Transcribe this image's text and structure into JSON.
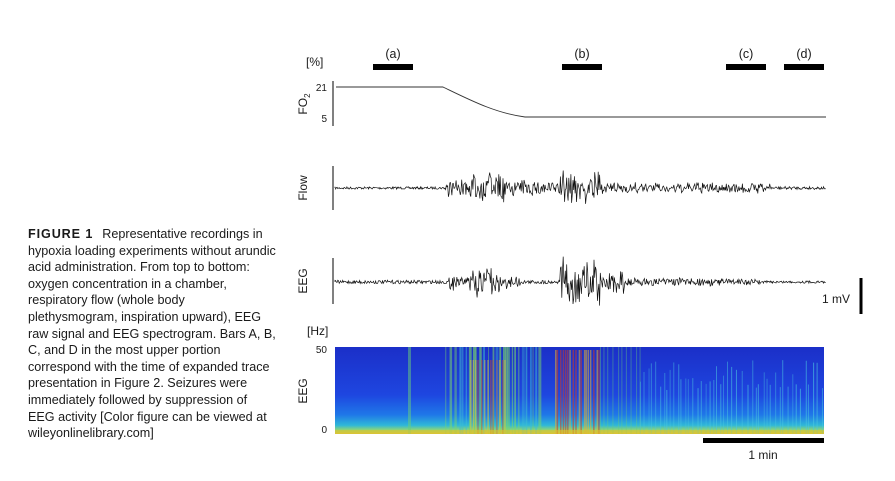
{
  "caption": {
    "label": "FIGURE 1",
    "text": "Representative recordings in hypoxia loading experiments without arundic acid administration. From top to bottom: oxygen concentration in a chamber, respiratory flow (whole body plethysmogram, inspiration upward), EEG raw signal and EEG spectrogram. Bars A, B, C, and D in the most upper portion correspond with the time of expanded trace presentation in Figure 2. Seizures were immediately followed by suppression of EEG activity [Color figure can be viewed at wileyonlinelibrary.com]"
  },
  "time_bars": [
    {
      "label": "(a)"
    },
    {
      "label": "(b)"
    },
    {
      "label": "(c)"
    },
    {
      "label": "(d)"
    }
  ],
  "fo2_panel": {
    "unit": "[%]",
    "axis_label": "FO",
    "axis_label_sub": "2",
    "tick_high": "21",
    "tick_low": "5"
  },
  "flow_panel": {
    "axis_label": "Flow"
  },
  "eeg_panel": {
    "axis_label": "EEG",
    "scale_label": "1 mV"
  },
  "spectrogram": {
    "unit": "[Hz]",
    "axis_label": "EEG",
    "tick_high": "50",
    "tick_low": "0",
    "time_scale_label": "1 min"
  }
}
